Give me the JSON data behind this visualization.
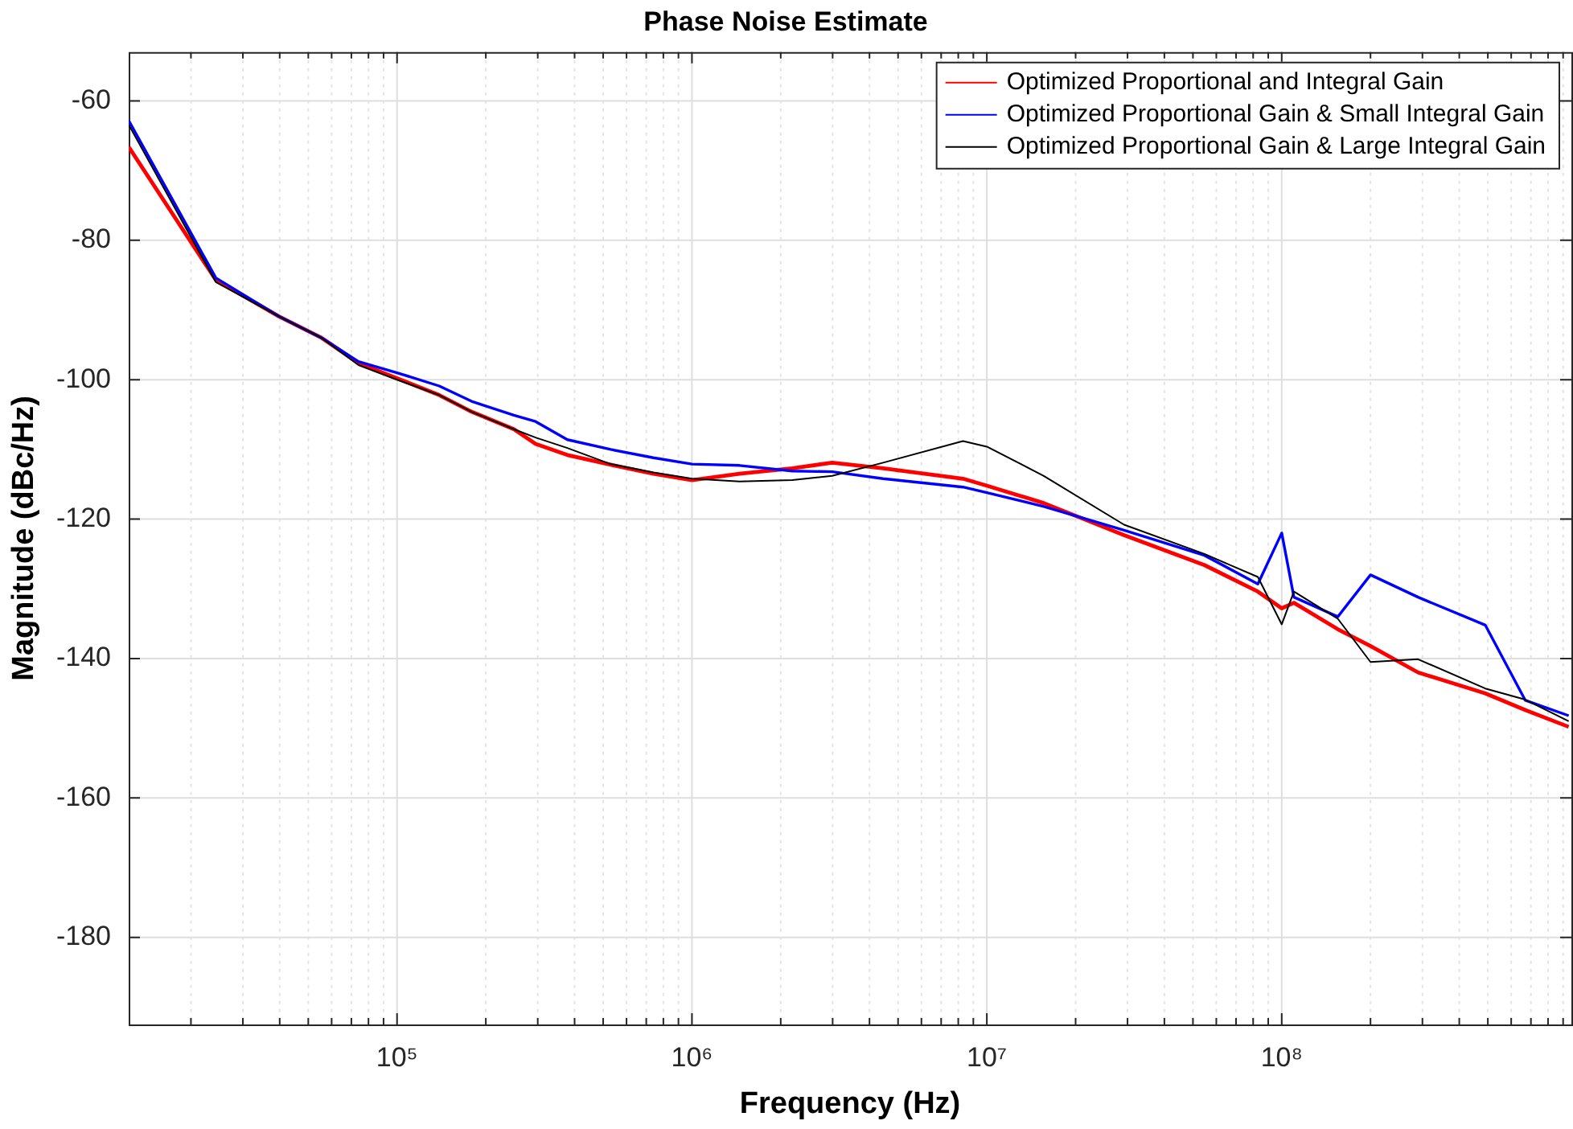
{
  "chart_data": {
    "type": "line",
    "title": "Phase Noise Estimate",
    "xlabel": "Frequency (Hz)",
    "ylabel": "Magnitude (dBc/Hz)",
    "x": [
      12300,
      24300,
      39700,
      55500,
      74000,
      100000,
      139000,
      179000,
      249000,
      295000,
      378000,
      530000,
      740000,
      1000000,
      1450000,
      2190000,
      2990000,
      4450000,
      8300000,
      10000000,
      15600000,
      29200000,
      54700000,
      83000000,
      100000000,
      110000000,
      155000000,
      200000000,
      290000000,
      490000000,
      670000000,
      940000000
    ],
    "series": [
      {
        "name": "Optimized Proportional and Integral Gain",
        "color": "#ff0000",
        "values": [
          -66.6,
          -85.7,
          -90.9,
          -94.0,
          -97.6,
          -99.8,
          -102.2,
          -104.6,
          -107.1,
          -109.2,
          -110.8,
          -112.2,
          -113.5,
          -114.4,
          -113.5,
          -112.7,
          -111.9,
          -112.7,
          -114.2,
          -115.2,
          -117.7,
          -122.3,
          -126.6,
          -130.4,
          -132.8,
          -132.0,
          -135.8,
          -138.2,
          -142.0,
          -145.0,
          -147.4,
          -149.8
        ]
      },
      {
        "name": "Optimized Proportional Gain & Small Integral Gain",
        "color": "#0000ff",
        "values": [
          -62.8,
          -85.4,
          -90.9,
          -94.0,
          -97.4,
          -99.0,
          -100.9,
          -103.1,
          -105.1,
          -106.0,
          -108.6,
          -110.0,
          -111.2,
          -112.1,
          -112.3,
          -113.1,
          -113.2,
          -114.2,
          -115.4,
          -116.2,
          -118.2,
          -121.6,
          -125.2,
          -129.3,
          -122.0,
          -131.2,
          -134.0,
          -128.0,
          -131.2,
          -135.2,
          -146.0,
          -148.2
        ]
      },
      {
        "name": "Optimized Proportional Gain & Large Integral Gain",
        "color": "#000000",
        "values": [
          -63.4,
          -86.0,
          -90.9,
          -94.0,
          -97.9,
          -100.0,
          -102.2,
          -104.6,
          -107.1,
          -108.3,
          -109.8,
          -112.1,
          -113.3,
          -114.2,
          -114.6,
          -114.4,
          -113.8,
          -111.9,
          -108.8,
          -109.6,
          -113.8,
          -120.8,
          -125.0,
          -128.3,
          -135.1,
          -130.4,
          -134.3,
          -140.5,
          -140.1,
          -144.3,
          -145.9,
          -149.0
        ]
      }
    ],
    "xlim": [
      12300,
      960000000
    ],
    "ylim": [
      -192.5,
      -53
    ],
    "xticks": [
      {
        "value": 20000,
        "label": null
      },
      {
        "value": 30000,
        "label": null
      },
      {
        "value": 40000,
        "label": null
      },
      {
        "value": 50000,
        "label": null
      },
      {
        "value": 60000,
        "label": null
      },
      {
        "value": 70000,
        "label": null
      },
      {
        "value": 80000,
        "label": null
      },
      {
        "value": 90000,
        "label": null
      },
      {
        "value": 100000,
        "label": "10⁵"
      },
      {
        "value": 200000,
        "label": null
      },
      {
        "value": 300000,
        "label": null
      },
      {
        "value": 400000,
        "label": null
      },
      {
        "value": 500000,
        "label": null
      },
      {
        "value": 600000,
        "label": null
      },
      {
        "value": 700000,
        "label": null
      },
      {
        "value": 800000,
        "label": null
      },
      {
        "value": 900000,
        "label": null
      },
      {
        "value": 1000000,
        "label": "10⁶"
      },
      {
        "value": 2000000,
        "label": null
      },
      {
        "value": 3000000,
        "label": null
      },
      {
        "value": 4000000,
        "label": null
      },
      {
        "value": 5000000,
        "label": null
      },
      {
        "value": 6000000,
        "label": null
      },
      {
        "value": 7000000,
        "label": null
      },
      {
        "value": 8000000,
        "label": null
      },
      {
        "value": 9000000,
        "label": null
      },
      {
        "value": 10000000,
        "label": "10⁷"
      },
      {
        "value": 20000000,
        "label": null
      },
      {
        "value": 30000000,
        "label": null
      },
      {
        "value": 40000000,
        "label": null
      },
      {
        "value": 50000000,
        "label": null
      },
      {
        "value": 60000000,
        "label": null
      },
      {
        "value": 70000000,
        "label": null
      },
      {
        "value": 80000000,
        "label": null
      },
      {
        "value": 90000000,
        "label": null
      },
      {
        "value": 100000000,
        "label": "10⁸"
      },
      {
        "value": 200000000,
        "label": null
      },
      {
        "value": 300000000,
        "label": null
      },
      {
        "value": 400000000,
        "label": null
      },
      {
        "value": 500000000,
        "label": null
      },
      {
        "value": 600000000,
        "label": null
      },
      {
        "value": 700000000,
        "label": null
      },
      {
        "value": 800000000,
        "label": null
      },
      {
        "value": 900000000,
        "label": null
      }
    ],
    "yticks": [
      -180,
      -160,
      -140,
      -120,
      -100,
      -80,
      -60
    ],
    "log": "x",
    "grid": true,
    "legend": "top right"
  }
}
